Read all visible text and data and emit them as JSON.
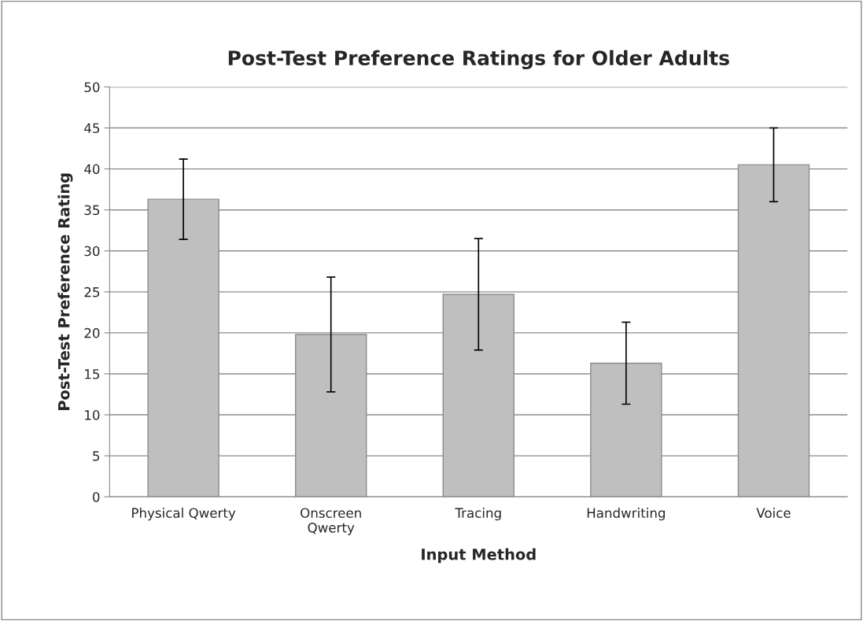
{
  "chart_data": {
    "type": "bar",
    "title": "Post-Test Preference Ratings for Older Adults",
    "xlabel": "Input Method",
    "ylabel": "Post-Test Preference Rating",
    "categories": [
      "Physical Qwerty",
      "Onscreen\nQwerty",
      "Tracing",
      "Handwriting",
      "Voice"
    ],
    "values": [
      36.3,
      19.8,
      24.7,
      16.3,
      40.5
    ],
    "errors": [
      4.9,
      7.0,
      6.8,
      5.0,
      4.5
    ],
    "color": "#bfbfbf",
    "ylim": [
      0,
      50
    ],
    "yticks": [
      0,
      5,
      10,
      15,
      20,
      25,
      30,
      35,
      40,
      45,
      50
    ],
    "grid": "y"
  }
}
